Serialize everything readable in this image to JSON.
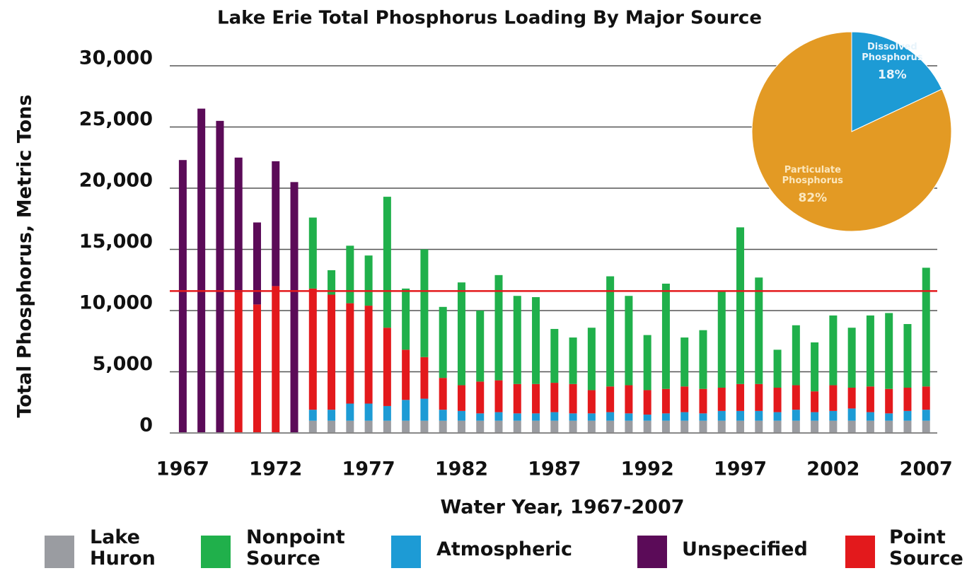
{
  "chart_data": [
    {
      "type": "bar",
      "title": "Lake Erie Total Phosphorus Loading By Major Source",
      "x_label": "Water Year, 1967-2007",
      "y_label": "Total Phosphorus, Metric Tons",
      "x": [
        1967,
        1968,
        1969,
        1970,
        1971,
        1972,
        1973,
        1974,
        1975,
        1976,
        1977,
        1978,
        1979,
        1980,
        1981,
        1982,
        1983,
        1984,
        1985,
        1986,
        1987,
        1988,
        1989,
        1990,
        1991,
        1992,
        1993,
        1994,
        1995,
        1996,
        1997,
        1998,
        1999,
        2000,
        2001,
        2002,
        2003,
        2004,
        2005,
        2006,
        2007
      ],
      "series": [
        {
          "name": "Lake Huron",
          "color": "#9a9ca1",
          "values": [
            null,
            null,
            null,
            null,
            null,
            null,
            null,
            1000,
            1000,
            1000,
            1000,
            1000,
            1000,
            1000,
            1000,
            1000,
            1000,
            1000,
            1000,
            1000,
            1000,
            1000,
            1000,
            1000,
            1000,
            1000,
            1000,
            1000,
            1000,
            1000,
            1000,
            1000,
            1000,
            1000,
            1000,
            1000,
            1000,
            1000,
            1000,
            1000,
            1000
          ]
        },
        {
          "name": "Nonpoint Source",
          "color": "#20b04b",
          "values": [
            null,
            null,
            null,
            null,
            null,
            null,
            null,
            5800,
            2000,
            4700,
            4100,
            10700,
            5000,
            8800,
            5800,
            8400,
            5800,
            8600,
            7200,
            7100,
            4400,
            3800,
            5100,
            9000,
            7300,
            4500,
            8600,
            4000,
            4800,
            7900,
            12800,
            8700,
            3100,
            4900,
            4000,
            5700,
            4900,
            5800,
            6200,
            5200,
            9700
          ]
        },
        {
          "name": "Atmospheric",
          "color": "#1d9bd5",
          "values": [
            null,
            null,
            null,
            null,
            null,
            null,
            null,
            900,
            900,
            1400,
            1400,
            1200,
            1700,
            1800,
            900,
            800,
            600,
            700,
            600,
            600,
            700,
            600,
            600,
            700,
            600,
            500,
            600,
            700,
            600,
            800,
            800,
            800,
            700,
            900,
            700,
            800,
            1000,
            700,
            600,
            800,
            900
          ]
        },
        {
          "name": "Unspecified",
          "color": "#5b0b58",
          "values": [
            22300,
            26500,
            25500,
            11000,
            6700,
            10200,
            20500,
            null,
            null,
            null,
            null,
            null,
            null,
            null,
            null,
            null,
            null,
            null,
            null,
            null,
            null,
            null,
            null,
            null,
            null,
            null,
            null,
            null,
            null,
            null,
            null,
            null,
            null,
            null,
            null,
            null,
            null,
            null,
            null,
            null,
            null
          ]
        },
        {
          "name": "Point Source",
          "color": "#e3191c",
          "values": [
            null,
            null,
            null,
            11500,
            10500,
            12000,
            null,
            9900,
            9400,
            8200,
            8000,
            6400,
            4100,
            3400,
            2600,
            2100,
            2600,
            2600,
            2400,
            2400,
            2400,
            2400,
            1900,
            2100,
            2300,
            2000,
            2000,
            2100,
            2000,
            1900,
            2200,
            2200,
            2000,
            2000,
            1700,
            2100,
            1700,
            2100,
            2000,
            1900,
            1900
          ]
        }
      ],
      "xlim": [
        1966.3,
        2007.6
      ],
      "xticks": [
        1967,
        1972,
        1977,
        1982,
        1987,
        1992,
        1997,
        2002,
        2007
      ],
      "ylim": [
        0,
        30000
      ],
      "yticks": [
        0,
        {
          "value": 5000,
          "label": "5,000"
        },
        {
          "value": 10000,
          "label": "10,000"
        },
        {
          "value": 15000,
          "label": "15,000"
        },
        {
          "value": 20000,
          "label": "20,000"
        },
        {
          "value": 25000,
          "label": "25,000"
        },
        {
          "value": 30000,
          "label": "30,000"
        }
      ],
      "grid": true,
      "reference_line": {
        "value": 11600,
        "color": "#e3191c"
      }
    },
    {
      "type": "pie",
      "categories": [
        "Dissolved Phosphorus",
        "Particulate Phosphorus"
      ],
      "values": [
        18,
        82
      ],
      "value_labels": [
        "18%",
        "82%"
      ],
      "colors": [
        "#1d9bd5",
        "#e39a24"
      ]
    }
  ]
}
